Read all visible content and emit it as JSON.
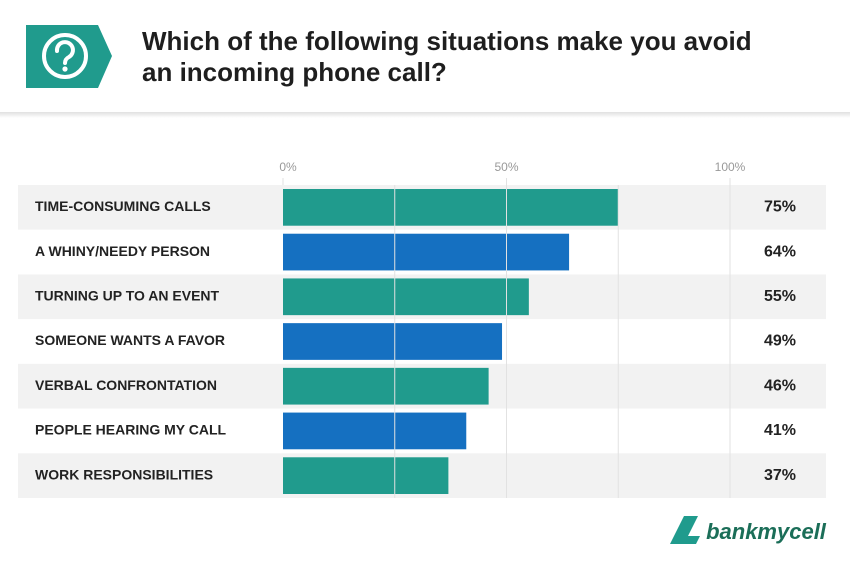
{
  "chart_data": {
    "type": "bar",
    "orientation": "horizontal",
    "title": "Which of the following situations make you avoid an incoming phone call?",
    "categories": [
      "TIME-CONSUMING CALLS",
      "A WHINY/NEEDY PERSON",
      "TURNING UP TO AN EVENT",
      "SOMEONE WANTS A FAVOR",
      "VERBAL CONFRONTATION",
      "PEOPLE HEARING MY CALL",
      "WORK RESPONSIBILITIES"
    ],
    "values": [
      75,
      64,
      55,
      49,
      46,
      41,
      37
    ],
    "value_labels": [
      "75%",
      "64%",
      "55%",
      "49%",
      "46%",
      "41%",
      "37%"
    ],
    "colors": [
      "#209b8d",
      "#1570c1",
      "#209b8d",
      "#1570c1",
      "#209b8d",
      "#1570c1",
      "#209b8d"
    ],
    "xlim": [
      0,
      100
    ],
    "xticks": [
      {
        "value": 0,
        "label": "0%"
      },
      {
        "value": 50,
        "label": "50%"
      },
      {
        "value": 100,
        "label": "100%"
      }
    ],
    "xgrid": [
      25,
      50,
      75,
      100
    ],
    "logo": "bankmycell"
  }
}
